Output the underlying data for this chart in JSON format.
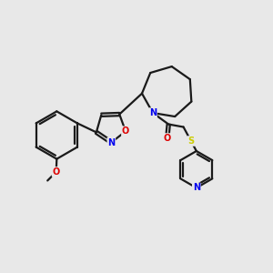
{
  "background_color": "#e8e8e8",
  "bond_color": "#1a1a1a",
  "bond_width": 1.6,
  "atom_colors": {
    "N": "#0000ee",
    "O": "#dd0000",
    "S": "#cccc00",
    "C": "#1a1a1a"
  },
  "font_size": 7.0,
  "figsize": [
    3.0,
    3.0
  ],
  "dpi": 100
}
